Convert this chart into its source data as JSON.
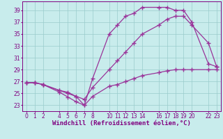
{
  "xlabel": "Windchill (Refroidissement éolien,°C)",
  "background_color": "#c8ecec",
  "line_color": "#993399",
  "grid_color": "#99cccc",
  "xlim": [
    -0.5,
    23.5
  ],
  "ylim": [
    22.0,
    40.5
  ],
  "xticks": [
    0,
    1,
    2,
    4,
    5,
    6,
    7,
    8,
    10,
    11,
    12,
    13,
    14,
    16,
    17,
    18,
    19,
    20,
    22,
    23
  ],
  "yticks": [
    23,
    25,
    27,
    29,
    31,
    33,
    35,
    37,
    39
  ],
  "line1_x": [
    0,
    1,
    2,
    4,
    5,
    6,
    7,
    8,
    10,
    11,
    12,
    13,
    14,
    16,
    17,
    18,
    19,
    20,
    22,
    23
  ],
  "line1_y": [
    26.8,
    26.8,
    26.5,
    25.2,
    24.4,
    23.6,
    23.0,
    24.5,
    26.2,
    26.5,
    27.0,
    27.5,
    28.0,
    28.5,
    28.8,
    29.0,
    29.0,
    29.0,
    29.0,
    29.0
  ],
  "line2_x": [
    0,
    1,
    2,
    4,
    5,
    6,
    7,
    8,
    10,
    11,
    12,
    13,
    14,
    16,
    17,
    18,
    19,
    20,
    22,
    23
  ],
  "line2_y": [
    26.8,
    26.8,
    26.5,
    25.5,
    25.0,
    24.5,
    24.0,
    26.0,
    29.0,
    30.5,
    32.0,
    33.5,
    35.0,
    36.5,
    37.5,
    38.0,
    38.0,
    36.5,
    33.5,
    29.5
  ],
  "line3_x": [
    0,
    1,
    2,
    4,
    5,
    6,
    7,
    8,
    10,
    11,
    12,
    13,
    14,
    16,
    17,
    18,
    19,
    20,
    22,
    23
  ],
  "line3_y": [
    26.8,
    26.8,
    26.5,
    25.5,
    25.2,
    24.5,
    23.0,
    27.5,
    35.0,
    36.5,
    38.0,
    38.5,
    39.5,
    39.5,
    39.5,
    39.0,
    39.0,
    37.0,
    30.0,
    29.5
  ],
  "marker": "+",
  "markersize": 4,
  "linewidth": 0.9,
  "tick_fontsize": 5.5,
  "label_fontsize": 6.5
}
